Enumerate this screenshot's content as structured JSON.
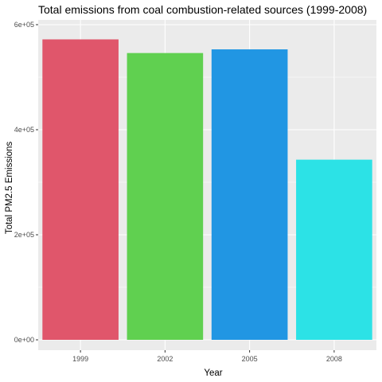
{
  "chart_data": {
    "type": "bar",
    "title": "Total emissions from coal combustion-related sources (1999-2008)",
    "xlabel": "Year",
    "ylabel": "Total PM2.5 Emissions",
    "categories": [
      "1999",
      "2002",
      "2005",
      "2008"
    ],
    "values": [
      572000,
      546000,
      553000,
      343000
    ],
    "colors": [
      "#E0566B",
      "#60D050",
      "#2196E3",
      "#2CE2E6"
    ],
    "ylim": [
      0,
      600000
    ],
    "y_ticks": [
      {
        "value": 0,
        "label": "0e+00"
      },
      {
        "value": 200000,
        "label": "2e+05"
      },
      {
        "value": 400000,
        "label": "4e+05"
      },
      {
        "value": 600000,
        "label": "6e+05"
      }
    ],
    "grid": true,
    "legend": "none",
    "panel_background": "#EBEBEB",
    "grid_color": "#FFFFFF"
  }
}
